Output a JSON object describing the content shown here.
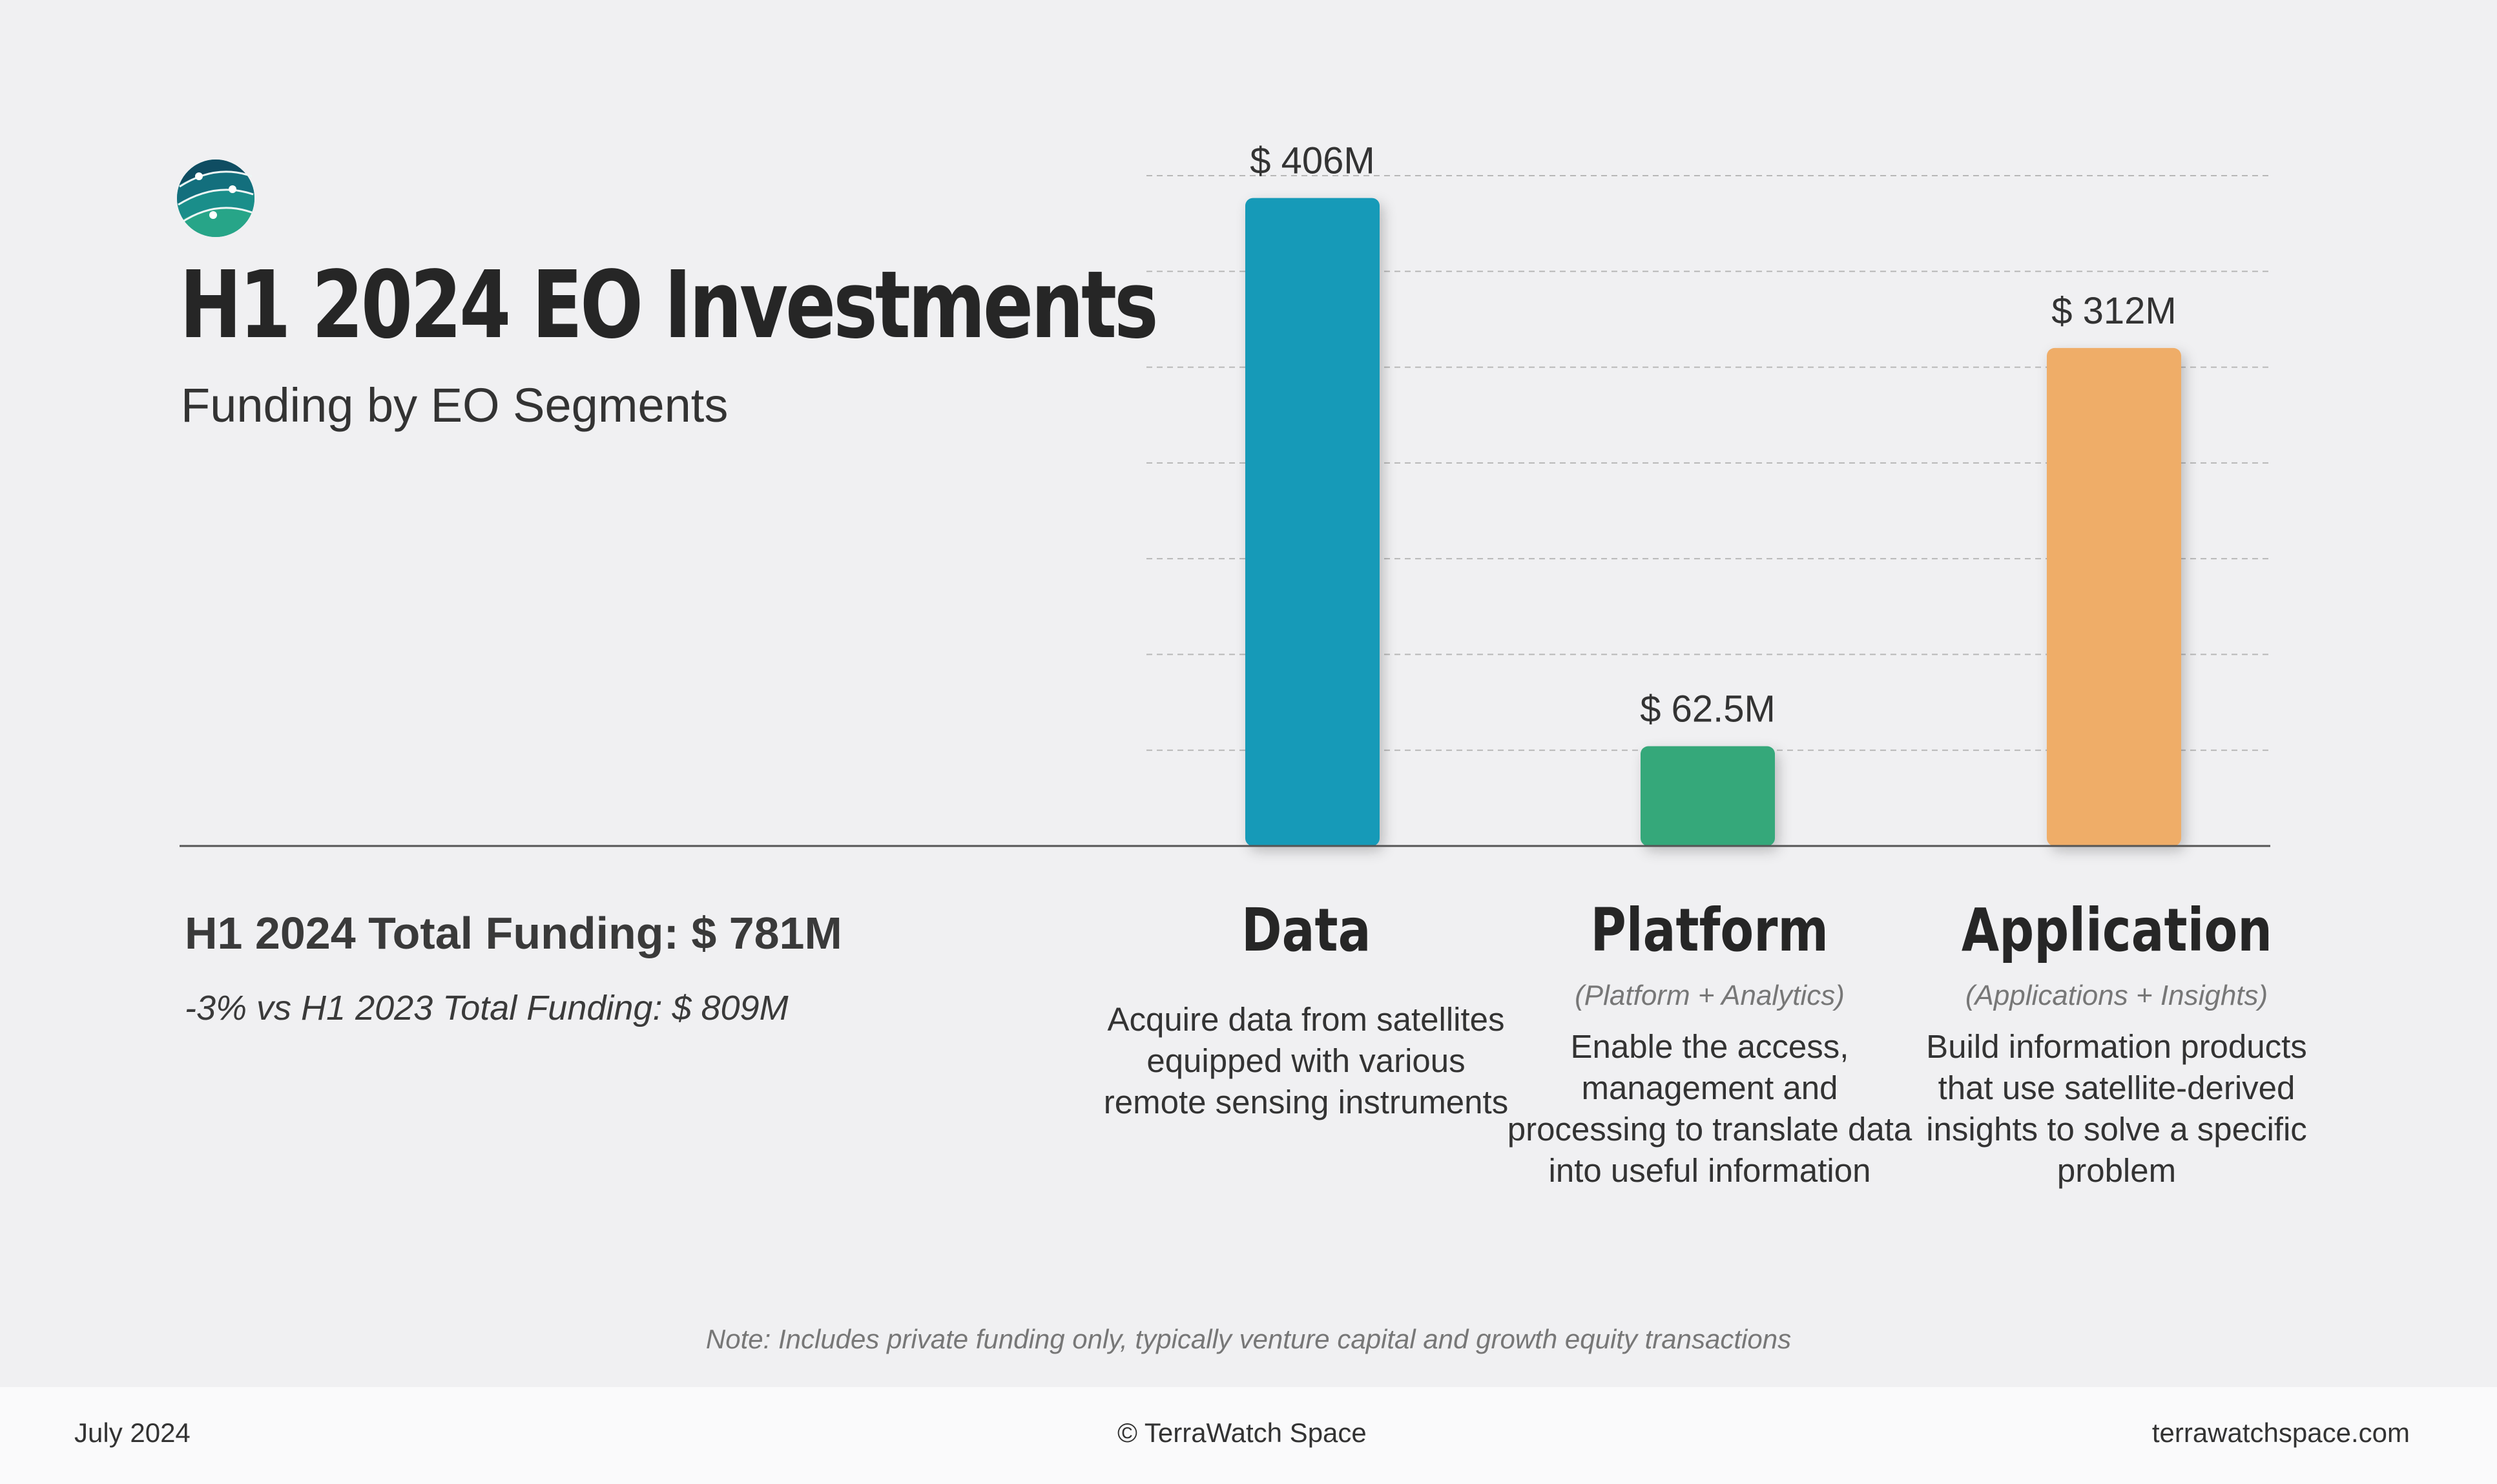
{
  "header": {
    "title": "H1 2024 EO Investments",
    "subtitle": "Funding by EO Segments"
  },
  "summary": {
    "total": "H1 2024 Total Funding: $ 781M",
    "comparison": "-3% vs H1 2023 Total Funding: $ 809M"
  },
  "chart_data": {
    "type": "bar",
    "title": "H1 2024 EO Investments",
    "subtitle": "Funding by EO Segments",
    "xlabel": "",
    "ylabel": "",
    "categories": [
      "Data",
      "Platform",
      "Application"
    ],
    "values": [
      406,
      62.5,
      312
    ],
    "value_labels": [
      "$ 406M",
      "$ 62.5M",
      "$ 312M"
    ],
    "unit": "$M",
    "ylim": [
      0,
      420
    ],
    "grid": true,
    "legend": "none",
    "colors": [
      "#139ab8",
      "#34a87a",
      "#efad68"
    ]
  },
  "segments": [
    {
      "name": "Data",
      "sub": "",
      "desc": "Acquire data from satellites equipped with various remote sensing instruments"
    },
    {
      "name": "Platform",
      "sub": "(Platform + Analytics)",
      "desc": "Enable the access, management and processing to translate data into useful information"
    },
    {
      "name": "Application",
      "sub": "(Applications + Insights)",
      "desc": "Build information products that use satellite-derived insights to solve a specific problem"
    }
  ],
  "note": "Note: Includes private funding only, typically venture capital and growth equity transactions",
  "footer": {
    "date": "July 2024",
    "copyright": "© TerraWatch Space",
    "website": "terrawatchspace.com"
  },
  "icons": {
    "logo": "globe-logo-icon"
  }
}
